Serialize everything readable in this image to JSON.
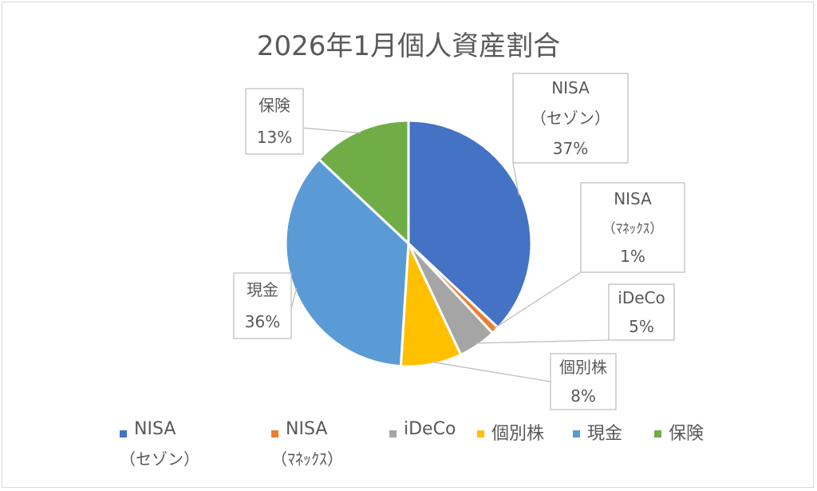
{
  "chart_data": {
    "type": "pie",
    "title": "2026年1月個人資産割合",
    "slices": [
      {
        "label": [
          "NISA",
          "（セゾン）"
        ],
        "legend": [
          "NISA",
          "（セゾン）"
        ],
        "value": 37,
        "pct": "37%",
        "color": "#4472C4"
      },
      {
        "label": [
          "NISA",
          "（ﾏﾈｯｸｽ）"
        ],
        "legend": [
          "NISA",
          "（ﾏﾈｯｸｽ）"
        ],
        "value": 1,
        "pct": "1%",
        "color": "#ED7D31"
      },
      {
        "label": [
          "iDeCo"
        ],
        "legend": [
          "iDeCo"
        ],
        "value": 5,
        "pct": "5%",
        "color": "#A5A5A5"
      },
      {
        "label": [
          "個別株"
        ],
        "legend": [
          "個別株"
        ],
        "value": 8,
        "pct": "8%",
        "color": "#FFC000"
      },
      {
        "label": [
          "現金"
        ],
        "legend": [
          "現金"
        ],
        "value": 36,
        "pct": "36%",
        "color": "#5B9BD5"
      },
      {
        "label": [
          "保険"
        ],
        "legend": [
          "保険"
        ],
        "value": 13,
        "pct": "13%",
        "color": "#70AD47"
      }
    ],
    "legend_position": "bottom"
  }
}
